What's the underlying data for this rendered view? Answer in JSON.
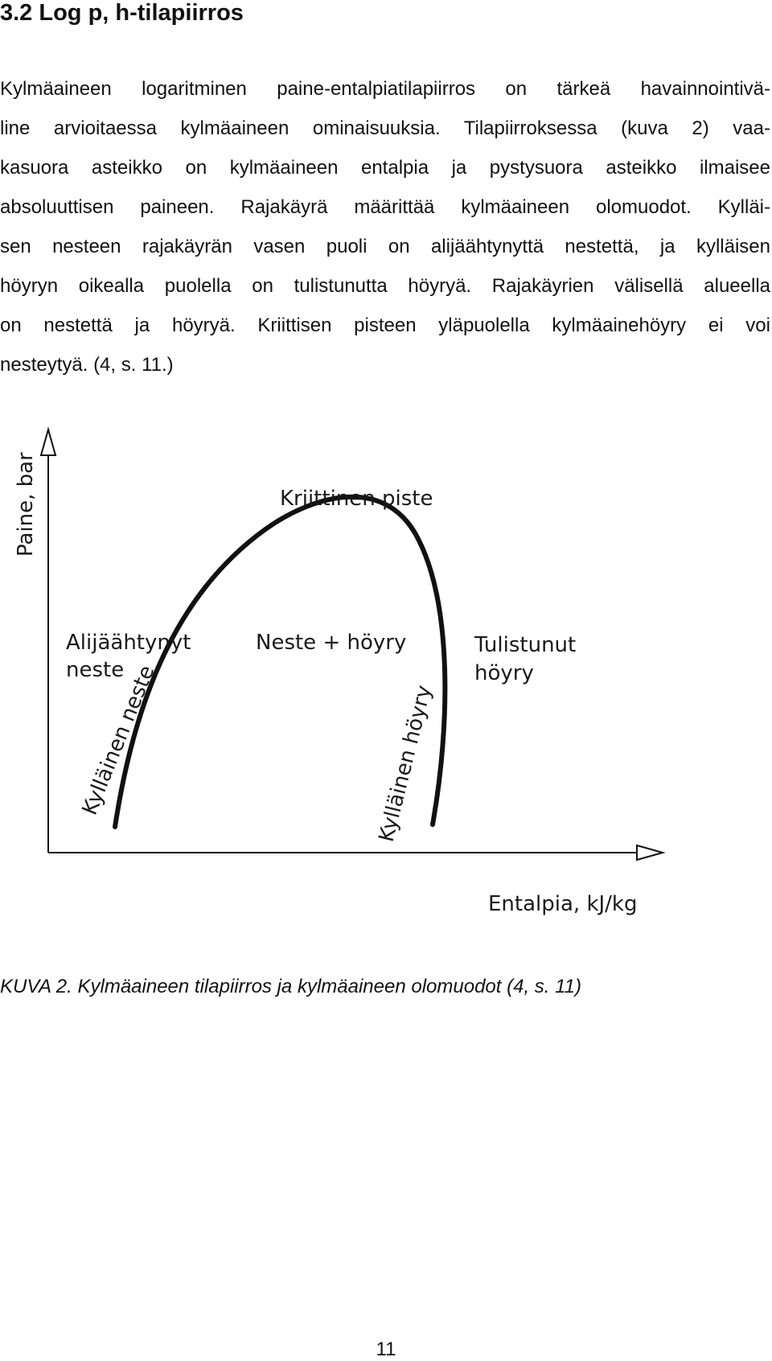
{
  "heading": "3.2 Log p, h-tilapiirros",
  "paragraph_lines": [
    "Kylmäaineen logaritminen paine-entalpiatilapiirros on tärkeä havainnointivä-",
    "line arvioitaessa kylmäaineen ominaisuuksia. Tilapiirroksessa (kuva 2) vaa-",
    "kasuora asteikko on kylmäaineen entalpia ja pystysuora asteikko ilmaisee",
    "absoluuttisen paineen. Rajakäyrä määrittää kylmäaineen olomuodot. Kylläi-",
    "sen nesteen rajakäyrän vasen puoli on alijäähtynyttä nestettä, ja kylläisen",
    "höyryn oikealla puolella on tulistunutta höyryä. Rajakäyrien välisellä alueella",
    "on nestettä ja höyryä. Kriittisen pisteen yläpuolella kylmäainehöyry ei voi",
    "nesteytyä. (4, s. 11.)"
  ],
  "figure": {
    "y_axis_label": "Paine, bar",
    "x_axis_label": "Entalpia, kJ/kg",
    "critical_point_label": "Kriittinen piste",
    "subcooled_label_line1": "Alijäähtynyt",
    "subcooled_label_line2": "neste",
    "two_phase_label": "Neste + höyry",
    "superheated_label_line1": "Tulistunut",
    "superheated_label_line2": "höyry",
    "saturated_liquid_label": "Kylläinen neste",
    "saturated_vapor_label": "Kylläinen höyry",
    "line_color": "#111111"
  },
  "caption": "KUVA 2. Kylmäaineen tilapiirros ja kylmäaineen olomuodot (4, s. 11)",
  "page_number": "11"
}
